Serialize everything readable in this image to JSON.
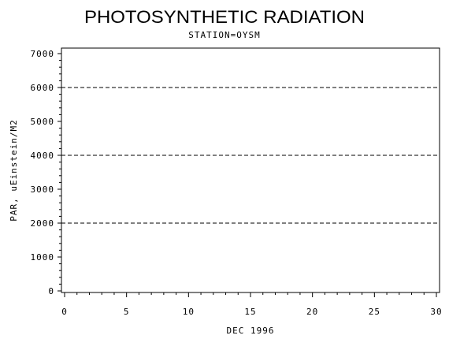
{
  "chart_data": {
    "type": "line",
    "title": "PHOTOSYNTHETIC RADIATION",
    "subtitle": "STATION=OYSM",
    "xlabel": "DEC 1996",
    "ylabel": "PAR, uEinstein/M2",
    "xlim": [
      0,
      30
    ],
    "ylim": [
      0,
      7000
    ],
    "x_ticks": [
      0,
      5,
      10,
      15,
      20,
      25,
      30
    ],
    "y_ticks": [
      0,
      1000,
      2000,
      3000,
      4000,
      5000,
      6000,
      7000
    ],
    "reference_lines": [
      2000,
      4000,
      6000
    ],
    "grid": false,
    "series": []
  }
}
